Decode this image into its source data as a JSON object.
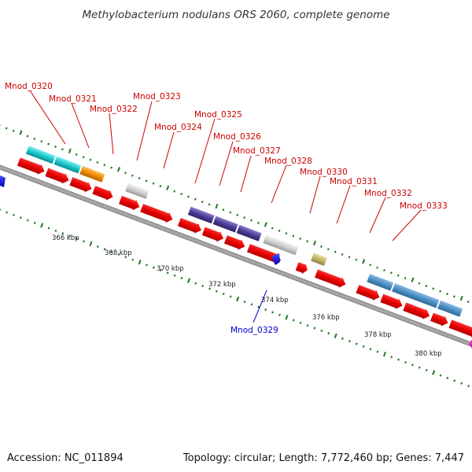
{
  "title": "Methylobacterium nodulans ORS 2060, complete genome",
  "footer": {
    "accession": "Accession: NC_011894",
    "summary": "Topology: circular; Length: 7,772,460 bp; Genes: 7,447"
  },
  "colors": {
    "label_top": "#cc0000",
    "label_bottom": "#0000cc",
    "backbone": "#999999",
    "backbone_edge": "#555555",
    "tick": "#1a7a1a"
  },
  "ruler": {
    "labels": [
      "366 kbp",
      "368 kbp",
      "370 kbp",
      "372 kbp",
      "374 kbp",
      "376 kbp",
      "378 kbp",
      "380 kbp"
    ]
  },
  "genes_top": [
    {
      "name": "Mnod_0320",
      "color": "#e60000"
    },
    {
      "name": "Mnod_0321",
      "color": "#e60000"
    },
    {
      "name": "Mnod_0322",
      "color": "#e60000"
    },
    {
      "name": "Mnod_0323",
      "color": "#e60000"
    },
    {
      "name": "Mnod_0324",
      "color": "#e60000"
    },
    {
      "name": "Mnod_0325",
      "color": "#e60000"
    },
    {
      "name": "Mnod_0326",
      "color": "#e60000"
    },
    {
      "name": "Mnod_0327",
      "color": "#e60000"
    },
    {
      "name": "Mnod_0328",
      "color": "#e60000"
    },
    {
      "name": "Mnod_0330",
      "color": "#e60000"
    },
    {
      "name": "Mnod_0331",
      "color": "#e60000"
    },
    {
      "name": "Mnod_0332",
      "color": "#e60000"
    },
    {
      "name": "Mnod_0333",
      "color": "#e60000"
    }
  ],
  "genes_bottom": [
    {
      "name": "Mnod_0329",
      "color": "#0000cc"
    }
  ]
}
